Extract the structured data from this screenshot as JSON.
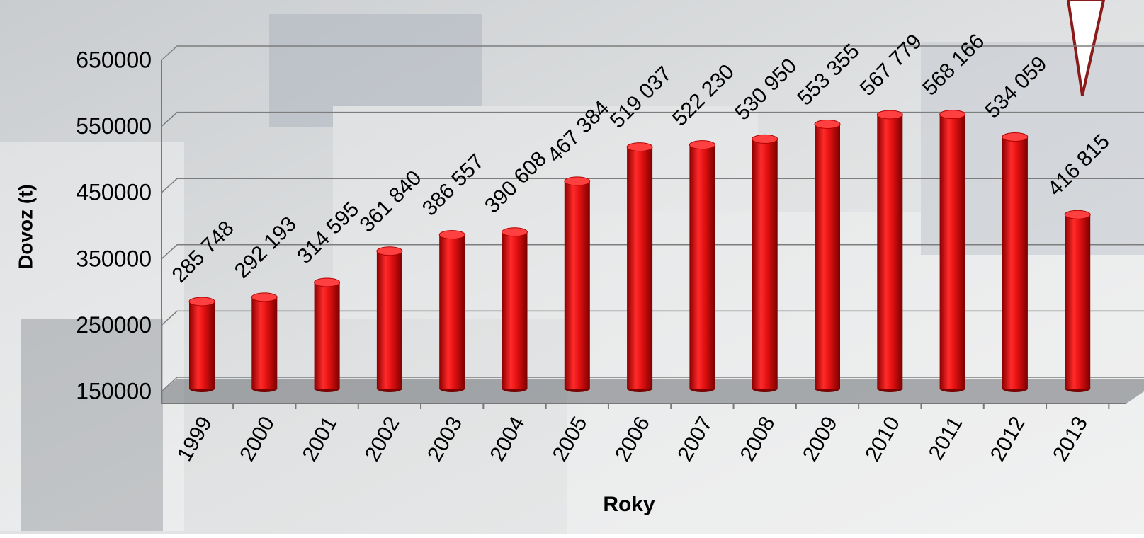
{
  "chart_data": {
    "type": "bar",
    "categories": [
      "1999",
      "2000",
      "2001",
      "2002",
      "2003",
      "2004",
      "2005",
      "2006",
      "2007",
      "2008",
      "2009",
      "2010",
      "2011",
      "2012",
      "2013"
    ],
    "values": [
      285748,
      292193,
      314595,
      361840,
      386557,
      390608,
      467384,
      519037,
      522230,
      530950,
      553355,
      567779,
      568166,
      534059,
      416815
    ],
    "value_labels": [
      "285 748",
      "292 193",
      "314 595",
      "361 840",
      "386 557",
      "390 608",
      "467 384",
      "519 037",
      "522 230",
      "530 950",
      "553 355",
      "567 779",
      "568 166",
      "534 059",
      "416 815"
    ],
    "color": "#e01010",
    "ylim": [
      150000,
      650000
    ],
    "yticks": [
      150000,
      250000,
      350000,
      450000,
      550000,
      650000
    ],
    "grid": true,
    "x_label": "Roky",
    "y_label": "Dovoz (t)"
  }
}
